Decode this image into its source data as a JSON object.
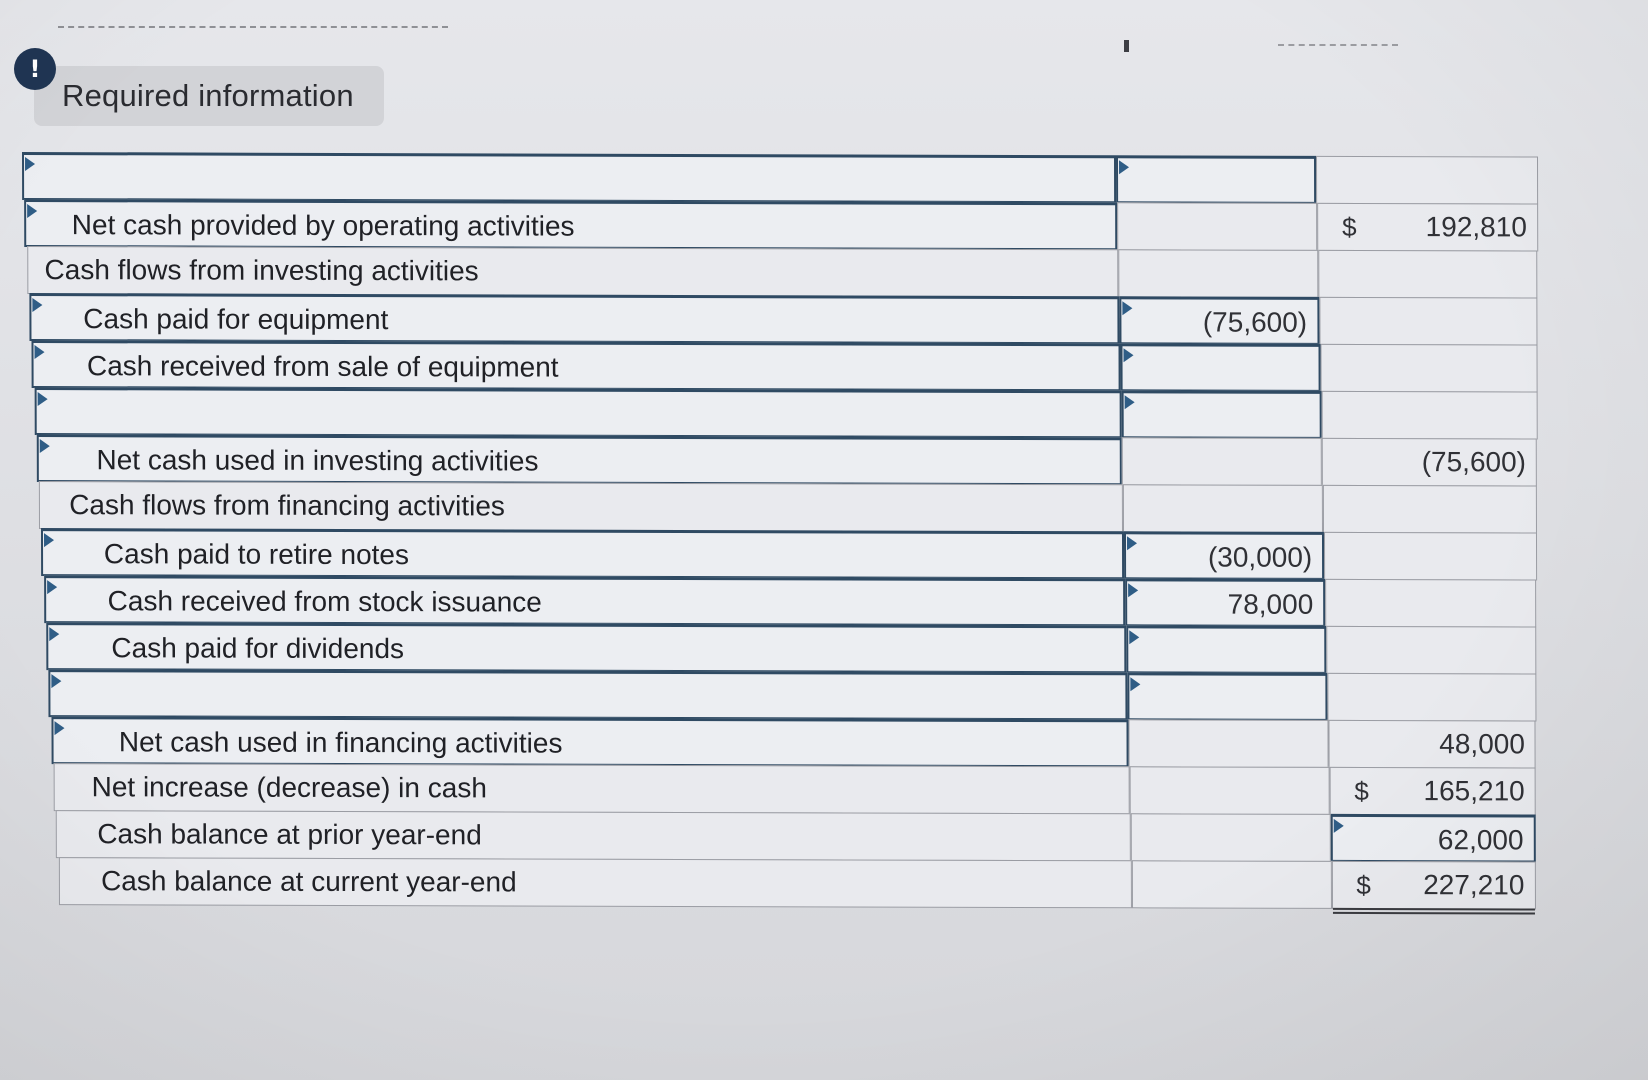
{
  "header": {
    "alert_glyph": "!",
    "title": "Required information"
  },
  "statement": {
    "rows": [
      {
        "label": "",
        "amount": "",
        "total": "",
        "dollar": ""
      },
      {
        "label": "Net cash provided by operating activities",
        "amount": "",
        "total": "192,810",
        "dollar": "$"
      },
      {
        "label": "Cash flows from investing activities",
        "amount": "",
        "total": "",
        "dollar": ""
      },
      {
        "label": "Cash paid for equipment",
        "amount": "(75,600)",
        "total": "",
        "dollar": ""
      },
      {
        "label": "Cash received from sale of equipment",
        "amount": "",
        "total": "",
        "dollar": ""
      },
      {
        "label": "",
        "amount": "",
        "total": "",
        "dollar": ""
      },
      {
        "label": "Net cash used in investing activities",
        "amount": "",
        "total": "(75,600)",
        "dollar": ""
      },
      {
        "label": "Cash flows from financing activities",
        "amount": "",
        "total": "",
        "dollar": ""
      },
      {
        "label": "Cash paid to retire notes",
        "amount": "(30,000)",
        "total": "",
        "dollar": ""
      },
      {
        "label": "Cash received from stock issuance",
        "amount": "78,000",
        "total": "",
        "dollar": ""
      },
      {
        "label": "Cash paid for dividends",
        "amount": "",
        "total": "",
        "dollar": ""
      },
      {
        "label": "",
        "amount": "",
        "total": "",
        "dollar": ""
      },
      {
        "label": "Net cash used in financing activities",
        "amount": "",
        "total": "48,000",
        "dollar": ""
      },
      {
        "label": "Net increase (decrease) in cash",
        "amount": "",
        "total": "165,210",
        "dollar": "$"
      },
      {
        "label": "Cash balance at prior year-end",
        "amount": "",
        "total": "62,000",
        "dollar": ""
      },
      {
        "label": "Cash balance at current year-end",
        "amount": "",
        "total": "227,210",
        "dollar": "$"
      }
    ]
  },
  "colors": {
    "input_border": "#2f4a63",
    "grid_border": "#9a9ca3",
    "alert_bg": "#1f3553"
  }
}
